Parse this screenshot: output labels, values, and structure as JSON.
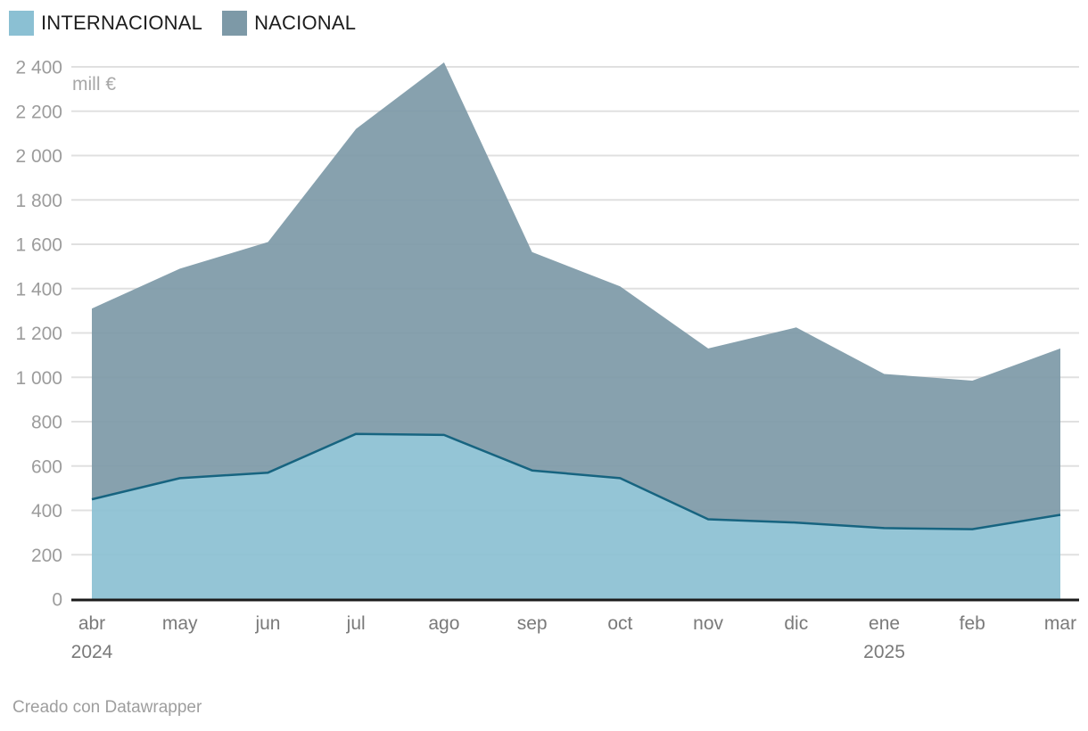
{
  "legend": {
    "items": [
      {
        "label": "INTERNACIONAL",
        "color": "#8bc0d3"
      },
      {
        "label": "NACIONAL",
        "color": "#7d99a7"
      }
    ]
  },
  "unit_label": "mill €",
  "footer": {
    "text": "Creado con Datawrapper"
  },
  "theme": {
    "background": "#ffffff",
    "grid_color": "#e0e0e0",
    "axis_color": "#1b1b1b",
    "y_tick_color": "#9c9c9c",
    "x_tick_color": "#7a7a7a",
    "unit_color": "#a8a8a8",
    "legend_text_color": "#1d1d1d",
    "footer_color": "#9e9e9e"
  },
  "chart_data": {
    "type": "area",
    "stacked": true,
    "title": "",
    "ylabel": "mill €",
    "xlabel": "",
    "grid": "horizontal",
    "legend_position": "top-left",
    "ylim": [
      0,
      2400
    ],
    "x": [
      "abr",
      "may",
      "jun",
      "jul",
      "ago",
      "sep",
      "oct",
      "nov",
      "dic",
      "ene",
      "feb",
      "mar"
    ],
    "x_year_markers": [
      {
        "index": 0,
        "year": "2024"
      },
      {
        "index": 9,
        "year": "2025"
      }
    ],
    "y_ticks": [
      {
        "value": 0,
        "label": "0"
      },
      {
        "value": 200,
        "label": "200"
      },
      {
        "value": 400,
        "label": "400"
      },
      {
        "value": 600,
        "label": "600"
      },
      {
        "value": 800,
        "label": "800"
      },
      {
        "value": 1000,
        "label": "1 000"
      },
      {
        "value": 1200,
        "label": "1 200"
      },
      {
        "value": 1400,
        "label": "1 400"
      },
      {
        "value": 1600,
        "label": "1 600"
      },
      {
        "value": 1800,
        "label": "1 800"
      },
      {
        "value": 2000,
        "label": "2 000"
      },
      {
        "value": 2200,
        "label": "2 200"
      },
      {
        "value": 2400,
        "label": "2 400"
      }
    ],
    "series": [
      {
        "name": "INTERNACIONAL",
        "color": "#8bc0d3",
        "line_color": "#176480",
        "values": [
          450,
          545,
          570,
          745,
          740,
          580,
          545,
          360,
          345,
          320,
          315,
          380
        ]
      },
      {
        "name": "NACIONAL",
        "color": "#7d99a7",
        "line_color": null,
        "values": [
          860,
          945,
          1040,
          1375,
          1680,
          985,
          865,
          770,
          880,
          695,
          670,
          750
        ]
      }
    ],
    "stacked_totals": [
      1310,
      1490,
      1610,
      2120,
      2420,
      1565,
      1410,
      1130,
      1225,
      1015,
      985,
      1130
    ]
  }
}
